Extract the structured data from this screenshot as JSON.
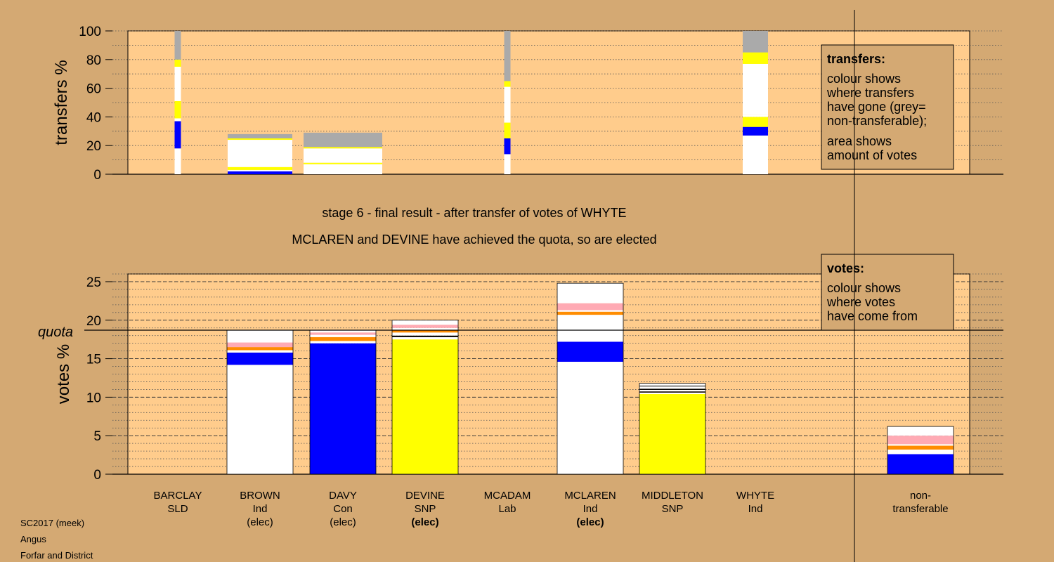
{
  "colors": {
    "background": "#d4a973",
    "panel": "#ffcc8c",
    "legend_box": "#d4a973",
    "white": "#ffffff",
    "blue": "#0000ff",
    "yellow": "#ffff00",
    "orange": "#ff8c00",
    "pink": "#ffaab4",
    "black": "#000000",
    "grey": "#aaaaaa"
  },
  "headings": {
    "line1": "stage 6 - final result - after transfer of votes of WHYTE",
    "line2": "MCLAREN and DEVINE have achieved the quota, so are elected"
  },
  "legends": {
    "transfers": {
      "title": "transfers:",
      "lines": [
        "colour shows",
        "where transfers",
        "have gone (grey=",
        "non-transferable);",
        "area shows",
        "amount of votes"
      ]
    },
    "votes": {
      "title": "votes:",
      "lines": [
        "colour shows",
        "where votes",
        "have come from"
      ]
    }
  },
  "footer": [
    "SC2017 (meek)",
    "Angus",
    "Forfar and District"
  ],
  "candidates": [
    {
      "name": "BARCLAY",
      "party": "SLD",
      "status": ""
    },
    {
      "name": "BROWN",
      "party": "Ind",
      "status": "(elec)"
    },
    {
      "name": "DAVY",
      "party": "Con",
      "status": "(elec)"
    },
    {
      "name": "DEVINE",
      "party": "SNP",
      "status": "(elec)"
    },
    {
      "name": "MCADAM",
      "party": "Lab",
      "status": ""
    },
    {
      "name": "MCLAREN",
      "party": "Ind",
      "status": "(elec)"
    },
    {
      "name": "MIDDLETON",
      "party": "SNP",
      "status": ""
    },
    {
      "name": "WHYTE",
      "party": "Ind",
      "status": ""
    },
    {
      "name": "non-",
      "party": "transferable",
      "status": ""
    }
  ],
  "chart_data": [
    {
      "type": "bar",
      "ylabel": "transfers %",
      "ylim": [
        0,
        100
      ],
      "yticks": [
        0,
        20,
        40,
        60,
        80,
        100
      ],
      "grid": true,
      "bars": [
        {
          "candidate": "BARCLAY",
          "segments": [
            [
              "white",
              18
            ],
            [
              "blue",
              19
            ],
            [
              "white",
              2
            ],
            [
              "yellow",
              12
            ],
            [
              "white",
              24
            ],
            [
              "yellow",
              5
            ],
            [
              "grey",
              20
            ]
          ]
        },
        {
          "candidate": "BROWN",
          "segments": [
            [
              "blue",
              2
            ],
            [
              "white",
              1
            ],
            [
              "yellow",
              2
            ],
            [
              "white",
              19
            ],
            [
              "yellow",
              1
            ],
            [
              "grey",
              3
            ]
          ]
        },
        {
          "candidate": "DAVY",
          "segments": [
            [
              "white",
              7
            ],
            [
              "yellow",
              1
            ],
            [
              "white",
              10
            ],
            [
              "yellow",
              1
            ],
            [
              "grey",
              10
            ]
          ]
        },
        {
          "candidate": "MCADAM",
          "segments": [
            [
              "white",
              14
            ],
            [
              "blue",
              11
            ],
            [
              "yellow",
              11
            ],
            [
              "white",
              25
            ],
            [
              "yellow",
              4
            ],
            [
              "grey",
              35
            ]
          ]
        },
        {
          "candidate": "WHYTE",
          "segments": [
            [
              "white",
              27
            ],
            [
              "blue",
              6
            ],
            [
              "yellow",
              7
            ],
            [
              "white",
              2
            ],
            [
              "white",
              35
            ],
            [
              "yellow",
              8
            ],
            [
              "grey",
              15
            ]
          ]
        }
      ]
    },
    {
      "type": "bar",
      "ylabel": "votes %",
      "ylim": [
        0,
        26
      ],
      "yticks": [
        0,
        5,
        10,
        15,
        20,
        25
      ],
      "quota": 18.7,
      "quota_label": "quota",
      "grid": true,
      "bars": [
        {
          "candidate": "BROWN",
          "segments": [
            [
              "white",
              14.2
            ],
            [
              "blue",
              1.6
            ],
            [
              "white",
              0.3
            ],
            [
              "orange",
              0.4
            ],
            [
              "pink",
              0.6
            ],
            [
              "white",
              1.6
            ]
          ]
        },
        {
          "candidate": "DAVY",
          "segments": [
            [
              "blue",
              17.0
            ],
            [
              "white",
              0.3
            ],
            [
              "orange",
              0.5
            ],
            [
              "white",
              0.3
            ],
            [
              "pink",
              0.3
            ],
            [
              "white",
              0.3
            ]
          ]
        },
        {
          "candidate": "DEVINE",
          "segments": [
            [
              "yellow",
              17.5
            ],
            [
              "white",
              0.3
            ],
            [
              "black",
              0.2
            ],
            [
              "white",
              0.4
            ],
            [
              "orange",
              0.3
            ],
            [
              "white",
              0.3
            ],
            [
              "pink",
              0.4
            ],
            [
              "white",
              0.6
            ]
          ]
        },
        {
          "candidate": "MCLAREN",
          "segments": [
            [
              "white",
              14.6
            ],
            [
              "blue",
              2.6
            ],
            [
              "white",
              3.5
            ],
            [
              "orange",
              0.4
            ],
            [
              "white",
              0.2
            ],
            [
              "pink",
              0.9
            ],
            [
              "white",
              2.6
            ]
          ]
        },
        {
          "candidate": "MIDDLETON",
          "segments": [
            [
              "yellow",
              10.4
            ],
            [
              "white",
              0.2
            ],
            [
              "black",
              0.15
            ],
            [
              "white",
              0.2
            ],
            [
              "black",
              0.15
            ],
            [
              "white",
              0.3
            ],
            [
              "black",
              0.1
            ],
            [
              "white",
              0.3
            ]
          ]
        },
        {
          "candidate": "non-transferable",
          "segments": [
            [
              "blue",
              2.6
            ],
            [
              "white",
              0.6
            ],
            [
              "orange",
              0.5
            ],
            [
              "white",
              0.2
            ],
            [
              "pink",
              1.1
            ],
            [
              "white",
              1.2
            ]
          ]
        }
      ]
    }
  ]
}
